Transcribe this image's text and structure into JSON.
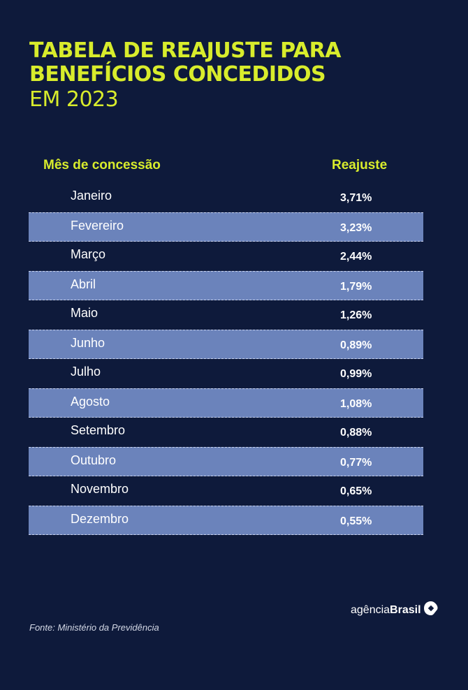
{
  "title": {
    "line1": "TABELA DE REAJUSTE PARA",
    "line2": "BENEFÍCIOS CONCEDIDOS",
    "line3": "EM 2023"
  },
  "table": {
    "headers": {
      "month": "Mês de concessão",
      "rate": "Reajuste"
    },
    "rows": [
      {
        "month": "Janeiro",
        "rate": "3,71%"
      },
      {
        "month": "Fevereiro",
        "rate": "3,23%"
      },
      {
        "month": "Março",
        "rate": "2,44%"
      },
      {
        "month": "Abril",
        "rate": "1,79%"
      },
      {
        "month": "Maio",
        "rate": "1,26%"
      },
      {
        "month": "Junho",
        "rate": "0,89%"
      },
      {
        "month": "Julho",
        "rate": "0,99%"
      },
      {
        "month": "Agosto",
        "rate": "1,08%"
      },
      {
        "month": "Setembro",
        "rate": "0,88%"
      },
      {
        "month": "Outubro",
        "rate": "0,77%"
      },
      {
        "month": "Novembro",
        "rate": "0,65%"
      },
      {
        "month": "Dezembro",
        "rate": "0,55%"
      }
    ]
  },
  "source": "Fonte: Ministério da Previdência",
  "logo": {
    "prefix": "agência",
    "brand": "Brasil"
  },
  "colors": {
    "background": "#0e1a3b",
    "accent": "#d8ec2c",
    "row_highlight": "#6b83bb"
  }
}
